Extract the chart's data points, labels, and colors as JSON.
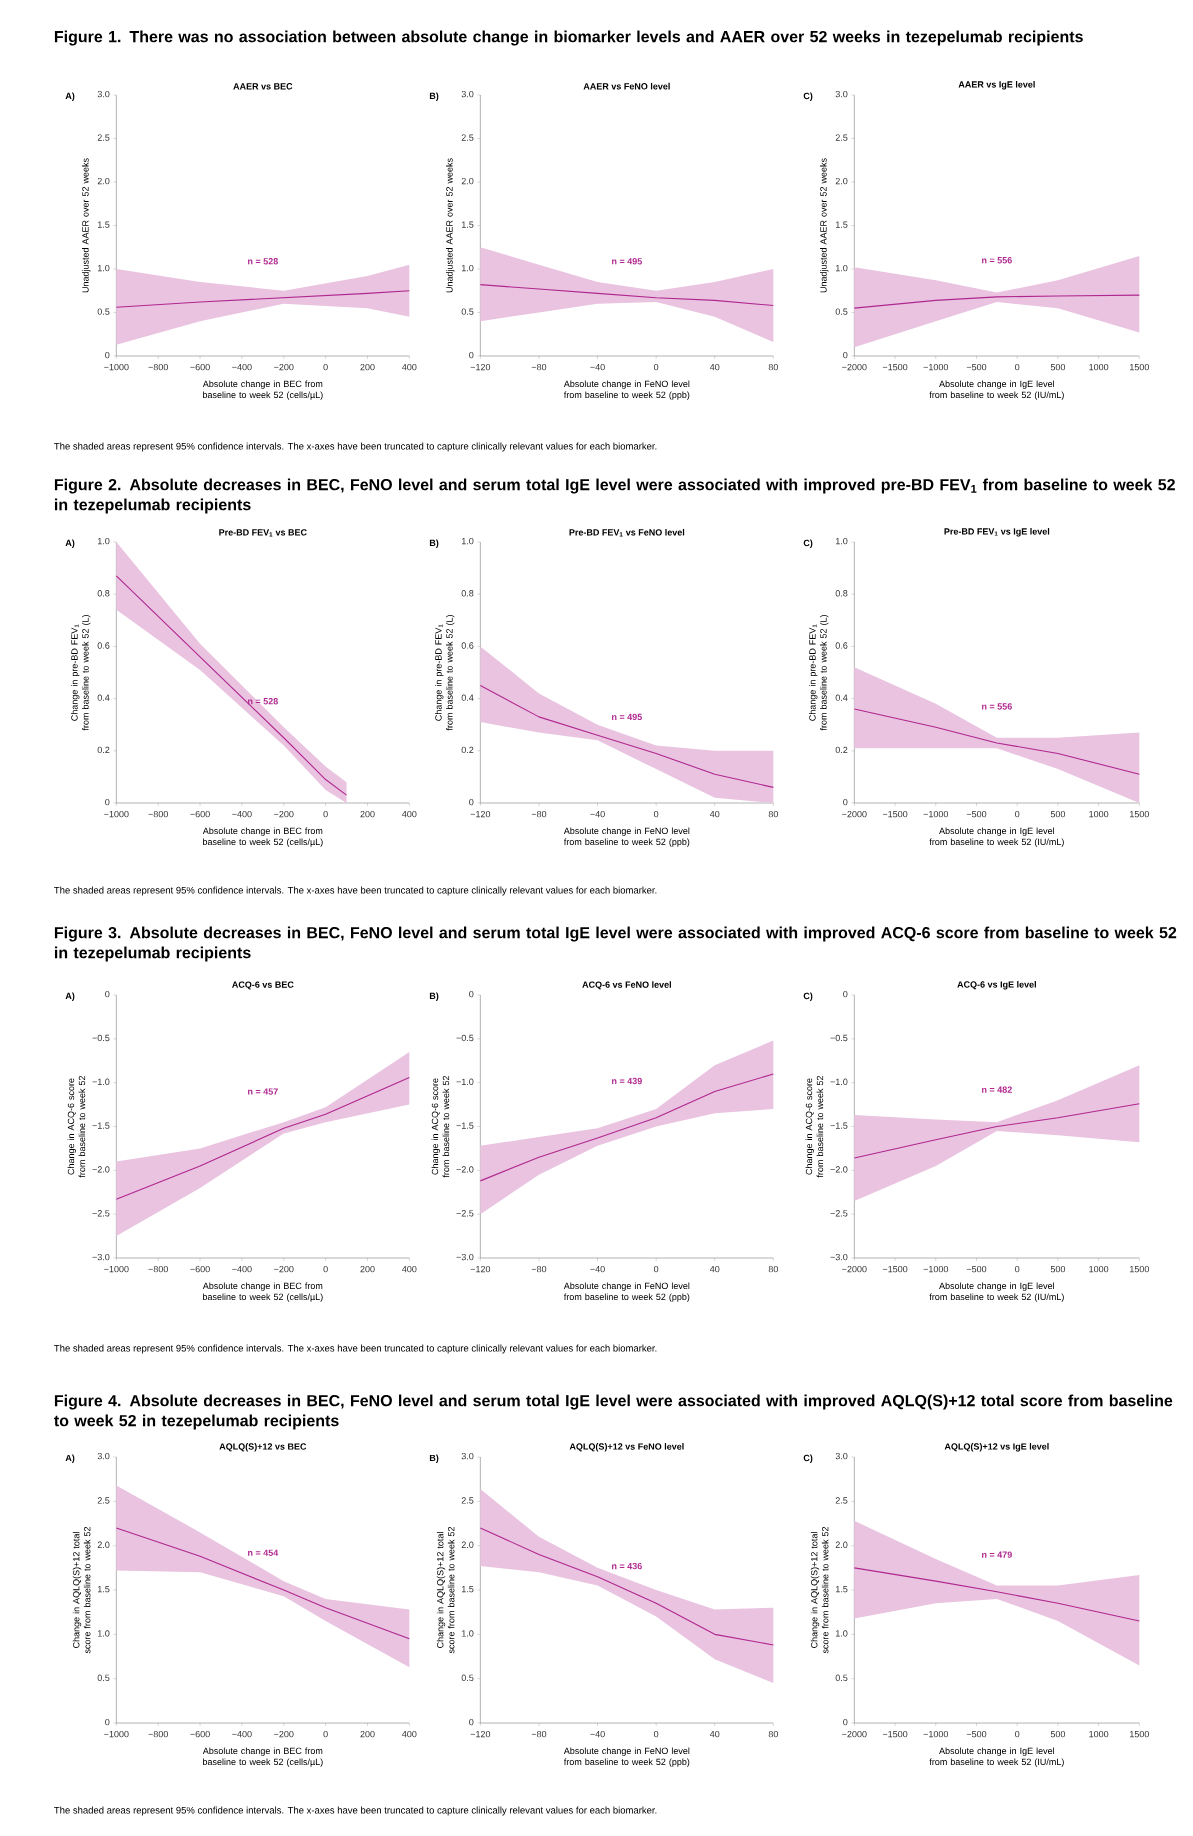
{
  "chart_data": [
    {
      "type": "line",
      "title": "AAER vs BEC",
      "xlabel": "Absolute change in BEC from baseline to week 52 (cells/µL)",
      "ylabel": "Unadjusted AAER over 52 weeks",
      "xlim": [
        -1000,
        400
      ],
      "ylim": [
        0,
        3.0
      ],
      "xticks": [
        {
          "value": -1000,
          "label": "−1000"
        },
        {
          "value": -800,
          "label": "−800"
        },
        {
          "value": -600,
          "label": "−600"
        },
        {
          "value": -400,
          "label": "−400"
        },
        {
          "value": -200,
          "label": "−200"
        },
        0,
        200,
        400
      ],
      "yticks": [
        0,
        0.5,
        {
          "value": 1.0,
          "label": "1.0"
        },
        1.5,
        {
          "value": 2.0,
          "label": "2.0"
        },
        2.5,
        {
          "value": 3.0,
          "label": "3.0"
        }
      ],
      "x": [
        -1000,
        -600,
        -200,
        200,
        400
      ],
      "series": [
        {
          "color": "#b0278f",
          "values": [
            0.56,
            0.62,
            0.67,
            0.72,
            0.75
          ],
          "lower": [
            0.13,
            0.4,
            0.6,
            0.55,
            0.45
          ],
          "upper": [
            1.0,
            0.85,
            0.75,
            0.92,
            1.05
          ]
        }
      ],
      "annotations": [
        "A)",
        "n = 528",
        "Figure 1. There was no association between absolute change in biomarker levels and AAER over 52 weeks in tezepelumab recipients",
        "The shaded areas represent 95% confidence intervals. The x-axes have been truncated to capture clinically relevant values for each biomarker."
      ]
    },
    {
      "type": "line",
      "title": "AAER vs FeNO level",
      "xlabel": "Absolute change in FeNO level from baseline to week 52 (ppb)",
      "ylabel": "Unadjusted AAER over 52 weeks",
      "xlim": [
        -120,
        80
      ],
      "ylim": [
        0,
        3.0
      ],
      "xticks": [
        {
          "value": -120,
          "label": "−120"
        },
        {
          "value": -80,
          "label": "−80"
        },
        {
          "value": -40,
          "label": "−40"
        },
        0,
        40,
        80
      ],
      "yticks": [
        0,
        0.5,
        {
          "value": 1.0,
          "label": "1.0"
        },
        1.5,
        {
          "value": 2.0,
          "label": "2.0"
        },
        2.5,
        {
          "value": 3.0,
          "label": "3.0"
        }
      ],
      "x": [
        -120,
        -80,
        -40,
        0,
        40,
        80
      ],
      "series": [
        {
          "color": "#b0278f",
          "values": [
            0.82,
            0.77,
            0.72,
            0.67,
            0.64,
            0.58
          ],
          "lower": [
            0.4,
            0.5,
            0.6,
            0.62,
            0.45,
            0.16
          ],
          "upper": [
            1.25,
            1.05,
            0.85,
            0.75,
            0.85,
            1.0
          ]
        }
      ],
      "annotations": [
        "B)",
        "n = 495"
      ]
    },
    {
      "type": "line",
      "title": "AAER vs IgE level",
      "xlabel": "Absolute change in IgE level from baseline to week 52 (IU/mL)",
      "ylabel": "Unadjusted AAER over 52 weeks",
      "xlim": [
        -2000,
        1500
      ],
      "ylim": [
        0,
        3.0
      ],
      "xticks": [
        {
          "value": -2000,
          "label": "−2000"
        },
        {
          "value": -1500,
          "label": "−1500"
        },
        {
          "value": -1000,
          "label": "−1000"
        },
        {
          "value": -500,
          "label": "−500"
        },
        0,
        500,
        1000,
        1500
      ],
      "yticks": [
        0,
        0.5,
        {
          "value": 1.0,
          "label": "1.0"
        },
        1.5,
        {
          "value": 2.0,
          "label": "2.0"
        },
        2.5,
        {
          "value": 3.0,
          "label": "3.0"
        }
      ],
      "x": [
        -2000,
        -1000,
        -250,
        500,
        1500
      ],
      "series": [
        {
          "color": "#b0278f",
          "values": [
            0.55,
            0.64,
            0.68,
            0.69,
            0.7
          ],
          "lower": [
            0.1,
            0.4,
            0.62,
            0.55,
            0.27
          ],
          "upper": [
            1.02,
            0.87,
            0.73,
            0.87,
            1.15
          ]
        }
      ],
      "annotations": [
        "C)",
        "n = 556"
      ]
    },
    {
      "type": "line",
      "title": "Pre-BD FEV$_{1}$ vs BEC",
      "xlabel": "Absolute change in BEC from baseline to week 52 (cells/µL)",
      "ylabel": "Change in pre-BD FEV$_{1}$ from baseline to week 52 (L)",
      "xlim": [
        -1000,
        400
      ],
      "ylim": [
        0,
        1.0
      ],
      "xticks": [
        {
          "value": -1000,
          "label": "−1000"
        },
        {
          "value": -800,
          "label": "−800"
        },
        {
          "value": -600,
          "label": "−600"
        },
        {
          "value": -400,
          "label": "−400"
        },
        {
          "value": -200,
          "label": "−200"
        },
        0,
        200,
        400
      ],
      "yticks": [
        0,
        0.2,
        0.4,
        0.6,
        0.8,
        {
          "value": 1.0,
          "label": "1.0"
        }
      ],
      "x": [
        -1000,
        -600,
        -200,
        0,
        100
      ],
      "series": [
        {
          "color": "#b0278f",
          "values": [
            0.87,
            0.56,
            0.25,
            0.09,
            0.03
          ],
          "lower": [
            0.74,
            0.51,
            0.22,
            0.05,
            0
          ],
          "upper": [
            1.0,
            0.61,
            0.29,
            0.14,
            0.08
          ]
        }
      ],
      "annotations": [
        "A)",
        "n = 528",
        "Figure 2. Absolute decreases in BEC, FeNO level and serum total IgE level were associated with improved pre-BD FEV$_{1}$ from baseline to week 52 in tezepelumab recipients",
        "The shaded areas represent 95% confidence intervals. The x-axes have been truncated to capture clinically relevant values for each biomarker."
      ]
    },
    {
      "type": "line",
      "title": "Pre-BD FEV$_{1}$ vs FeNO level",
      "xlabel": "Absolute change in FeNO level from baseline to week 52 (ppb)",
      "ylabel": "Change in pre-BD FEV$_{1}$ from baseline to week 52 (L)",
      "xlim": [
        -120,
        80
      ],
      "ylim": [
        0,
        1.0
      ],
      "xticks": [
        {
          "value": -120,
          "label": "−120"
        },
        {
          "value": -80,
          "label": "−80"
        },
        {
          "value": -40,
          "label": "−40"
        },
        0,
        40,
        80
      ],
      "yticks": [
        0,
        0.2,
        0.4,
        0.6,
        0.8,
        {
          "value": 1.0,
          "label": "1.0"
        }
      ],
      "x": [
        -120,
        -80,
        -40,
        0,
        40,
        80
      ],
      "series": [
        {
          "color": "#b0278f",
          "values": [
            0.45,
            0.33,
            0.26,
            0.19,
            0.11,
            0.06
          ],
          "lower": [
            0.31,
            0.27,
            0.24,
            0.13,
            0.02,
            0
          ],
          "upper": [
            0.6,
            0.42,
            0.3,
            0.22,
            0.2,
            0.2
          ]
        }
      ],
      "annotations": [
        "B)",
        "n = 495"
      ]
    },
    {
      "type": "line",
      "title": "Pre-BD FEV$_{1}$ vs IgE level",
      "xlabel": "Absolute change in IgE level from baseline to week 52 (IU/mL)",
      "ylabel": "Change in pre-BD FEV$_{1}$ from baseline to week 52 (L)",
      "xlim": [
        -2000,
        1500
      ],
      "ylim": [
        0,
        1.0
      ],
      "xticks": [
        {
          "value": -2000,
          "label": "−2000"
        },
        {
          "value": -1500,
          "label": "−1500"
        },
        {
          "value": -1000,
          "label": "−1000"
        },
        {
          "value": -500,
          "label": "−500"
        },
        0,
        500,
        1000,
        1500
      ],
      "yticks": [
        0,
        0.2,
        0.4,
        0.6,
        0.8,
        {
          "value": 1.0,
          "label": "1.0"
        }
      ],
      "x": [
        -2000,
        -1000,
        -250,
        500,
        1500
      ],
      "series": [
        {
          "color": "#b0278f",
          "values": [
            0.36,
            0.29,
            0.23,
            0.19,
            0.11
          ],
          "lower": [
            0.21,
            0.21,
            0.21,
            0.13,
            0
          ],
          "upper": [
            0.52,
            0.38,
            0.25,
            0.25,
            0.27
          ]
        }
      ],
      "annotations": [
        "C)",
        "n = 556"
      ]
    },
    {
      "type": "line",
      "title": "ACQ-6 vs BEC",
      "xlabel": "Absolute change in BEC from baseline to week 52 (cells/µL)",
      "ylabel": "Change in ACQ-6 score from baseline to week 52",
      "xlim": [
        -1000,
        400
      ],
      "ylim": [
        -3.0,
        0
      ],
      "xticks": [
        {
          "value": -1000,
          "label": "−1000"
        },
        {
          "value": -800,
          "label": "−800"
        },
        {
          "value": -600,
          "label": "−600"
        },
        {
          "value": -400,
          "label": "−400"
        },
        {
          "value": -200,
          "label": "−200"
        },
        0,
        200,
        400
      ],
      "yticks": [
        {
          "value": -3.0,
          "label": "−3.0"
        },
        {
          "value": -2.5,
          "label": "−2.5"
        },
        {
          "value": -2.0,
          "label": "−2.0"
        },
        {
          "value": -1.5,
          "label": "−1.5"
        },
        {
          "value": -1.0,
          "label": "−1.0"
        },
        {
          "value": -0.5,
          "label": "−0.5"
        },
        0
      ],
      "x": [
        -1000,
        -600,
        -200,
        0,
        400
      ],
      "series": [
        {
          "color": "#b0278f",
          "values": [
            -2.33,
            -1.95,
            -1.52,
            -1.36,
            -0.94
          ],
          "lower": [
            -2.75,
            -2.2,
            -1.58,
            -1.45,
            -1.25
          ],
          "upper": [
            -1.9,
            -1.75,
            -1.45,
            -1.28,
            -0.65
          ]
        }
      ],
      "annotations": [
        "A)",
        "n = 457",
        "Figure 3. Absolute decreases in BEC, FeNO level and serum total IgE level were associated with improved ACQ-6 score from baseline to week 52 in tezepelumab recipients",
        "The shaded areas represent 95% confidence intervals. The x-axes have been truncated to capture clinically relevant values for each biomarker."
      ]
    },
    {
      "type": "line",
      "title": "ACQ-6 vs FeNO level",
      "xlabel": "Absolute change in FeNO level from baseline to week 52 (ppb)",
      "ylabel": "Change in ACQ-6 score from baseline to week 52",
      "xlim": [
        -120,
        80
      ],
      "ylim": [
        -3.0,
        0
      ],
      "xticks": [
        {
          "value": -120,
          "label": "−120"
        },
        {
          "value": -80,
          "label": "−80"
        },
        {
          "value": -40,
          "label": "−40"
        },
        0,
        40,
        80
      ],
      "yticks": [
        {
          "value": -3.0,
          "label": "−3.0"
        },
        {
          "value": -2.5,
          "label": "−2.5"
        },
        {
          "value": -2.0,
          "label": "−2.0"
        },
        {
          "value": -1.5,
          "label": "−1.5"
        },
        {
          "value": -1.0,
          "label": "−1.0"
        },
        {
          "value": -0.5,
          "label": "−0.5"
        },
        0
      ],
      "x": [
        -120,
        -80,
        -40,
        0,
        40,
        80
      ],
      "series": [
        {
          "color": "#b0278f",
          "values": [
            -2.12,
            -1.85,
            -1.63,
            -1.4,
            -1.1,
            -0.9
          ],
          "lower": [
            -2.5,
            -2.05,
            -1.72,
            -1.5,
            -1.35,
            -1.3
          ],
          "upper": [
            -1.72,
            -1.62,
            -1.52,
            -1.3,
            -0.8,
            -0.52
          ]
        }
      ],
      "annotations": [
        "B)",
        "n = 439"
      ]
    },
    {
      "type": "line",
      "title": "ACQ-6 vs IgE level",
      "xlabel": "Absolute change in IgE level from baseline to week 52 (IU/mL)",
      "ylabel": "Change in ACQ-6 score from baseline to week 52",
      "xlim": [
        -2000,
        1500
      ],
      "ylim": [
        -3.0,
        0
      ],
      "xticks": [
        {
          "value": -2000,
          "label": "−2000"
        },
        {
          "value": -1500,
          "label": "−1500"
        },
        {
          "value": -1000,
          "label": "−1000"
        },
        {
          "value": -500,
          "label": "−500"
        },
        0,
        500,
        1000,
        1500
      ],
      "yticks": [
        {
          "value": -3.0,
          "label": "−3.0"
        },
        {
          "value": -2.5,
          "label": "−2.5"
        },
        {
          "value": -2.0,
          "label": "−2.0"
        },
        {
          "value": -1.5,
          "label": "−1.5"
        },
        {
          "value": -1.0,
          "label": "−1.0"
        },
        {
          "value": -0.5,
          "label": "−0.5"
        },
        0
      ],
      "x": [
        -2000,
        -1000,
        -250,
        500,
        1500
      ],
      "series": [
        {
          "color": "#b0278f",
          "values": [
            -1.86,
            -1.65,
            -1.5,
            -1.4,
            -1.24
          ],
          "lower": [
            -2.35,
            -1.95,
            -1.55,
            -1.6,
            -1.68
          ],
          "upper": [
            -1.37,
            -1.42,
            -1.45,
            -1.2,
            -0.8
          ]
        }
      ],
      "annotations": [
        "C)",
        "n = 482"
      ]
    },
    {
      "type": "line",
      "title": "AQLQ(S)+12 vs BEC",
      "xlabel": "Absolute change in BEC from baseline to week 52 (cells/µL)",
      "ylabel": "Change in AQLQ(S)+12 total score from baseline to week 52",
      "xlim": [
        -1000,
        400
      ],
      "ylim": [
        0,
        3.0
      ],
      "xticks": [
        {
          "value": -1000,
          "label": "−1000"
        },
        {
          "value": -800,
          "label": "−800"
        },
        {
          "value": -600,
          "label": "−600"
        },
        {
          "value": -400,
          "label": "−400"
        },
        {
          "value": -200,
          "label": "−200"
        },
        0,
        200,
        400
      ],
      "yticks": [
        0,
        0.5,
        {
          "value": 1.0,
          "label": "1.0"
        },
        1.5,
        {
          "value": 2.0,
          "label": "2.0"
        },
        2.5,
        {
          "value": 3.0,
          "label": "3.0"
        }
      ],
      "x": [
        -1000,
        -600,
        -200,
        0,
        400
      ],
      "series": [
        {
          "color": "#b0278f",
          "values": [
            2.2,
            1.88,
            1.5,
            1.3,
            0.95
          ],
          "lower": [
            1.72,
            1.7,
            1.43,
            1.15,
            0.63
          ],
          "upper": [
            2.68,
            2.15,
            1.6,
            1.4,
            1.28
          ]
        }
      ],
      "annotations": [
        "A)",
        "n = 454",
        "Figure 4. Absolute decreases in BEC, FeNO level and serum total IgE level were associated with improved AQLQ(S)+12 total score from baseline to week 52 in tezepelumab recipients",
        "The shaded areas represent 95% confidence intervals. The x-axes have been truncated to capture clinically relevant values for each biomarker."
      ]
    },
    {
      "type": "line",
      "title": "AQLQ(S)+12 vs FeNO level",
      "xlabel": "Absolute change in FeNO level from baseline to week 52 (ppb)",
      "ylabel": "Change in AQLQ(S)+12 total score from baseline to week 52",
      "xlim": [
        -120,
        80
      ],
      "ylim": [
        0,
        3.0
      ],
      "xticks": [
        {
          "value": -120,
          "label": "−120"
        },
        {
          "value": -80,
          "label": "−80"
        },
        {
          "value": -40,
          "label": "−40"
        },
        0,
        40,
        80
      ],
      "yticks": [
        0,
        0.5,
        {
          "value": 1.0,
          "label": "1.0"
        },
        1.5,
        {
          "value": 2.0,
          "label": "2.0"
        },
        2.5,
        {
          "value": 3.0,
          "label": "3.0"
        }
      ],
      "x": [
        -120,
        -80,
        -40,
        0,
        40,
        80
      ],
      "series": [
        {
          "color": "#b0278f",
          "values": [
            2.2,
            1.9,
            1.65,
            1.35,
            1.0,
            0.88
          ],
          "lower": [
            1.77,
            1.7,
            1.55,
            1.2,
            0.72,
            0.45
          ],
          "upper": [
            2.64,
            2.1,
            1.75,
            1.5,
            1.28,
            1.3
          ]
        }
      ],
      "annotations": [
        "B)",
        "n = 436"
      ]
    },
    {
      "type": "line",
      "title": "AQLQ(S)+12 vs IgE level",
      "xlabel": "Absolute change in IgE level from baseline to week 52 (IU/mL)",
      "ylabel": "Change in AQLQ(S)+12 total score from baseline to week 52",
      "xlim": [
        -2000,
        1500
      ],
      "ylim": [
        0,
        3.0
      ],
      "xticks": [
        {
          "value": -2000,
          "label": "−2000"
        },
        {
          "value": -1500,
          "label": "−1500"
        },
        {
          "value": -1000,
          "label": "−1000"
        },
        {
          "value": -500,
          "label": "−500"
        },
        0,
        500,
        1000,
        1500
      ],
      "yticks": [
        0,
        0.5,
        {
          "value": 1.0,
          "label": "1.0"
        },
        1.5,
        {
          "value": 2.0,
          "label": "2.0"
        },
        2.5,
        {
          "value": 3.0,
          "label": "3.0"
        }
      ],
      "x": [
        -2000,
        -1000,
        -250,
        500,
        1500
      ],
      "series": [
        {
          "color": "#b0278f",
          "values": [
            1.75,
            1.6,
            1.48,
            1.35,
            1.15
          ],
          "lower": [
            1.18,
            1.35,
            1.4,
            1.15,
            0.65
          ],
          "upper": [
            2.28,
            1.85,
            1.55,
            1.55,
            1.67
          ]
        }
      ],
      "annotations": [
        "C)",
        "n = 479"
      ]
    }
  ]
}
